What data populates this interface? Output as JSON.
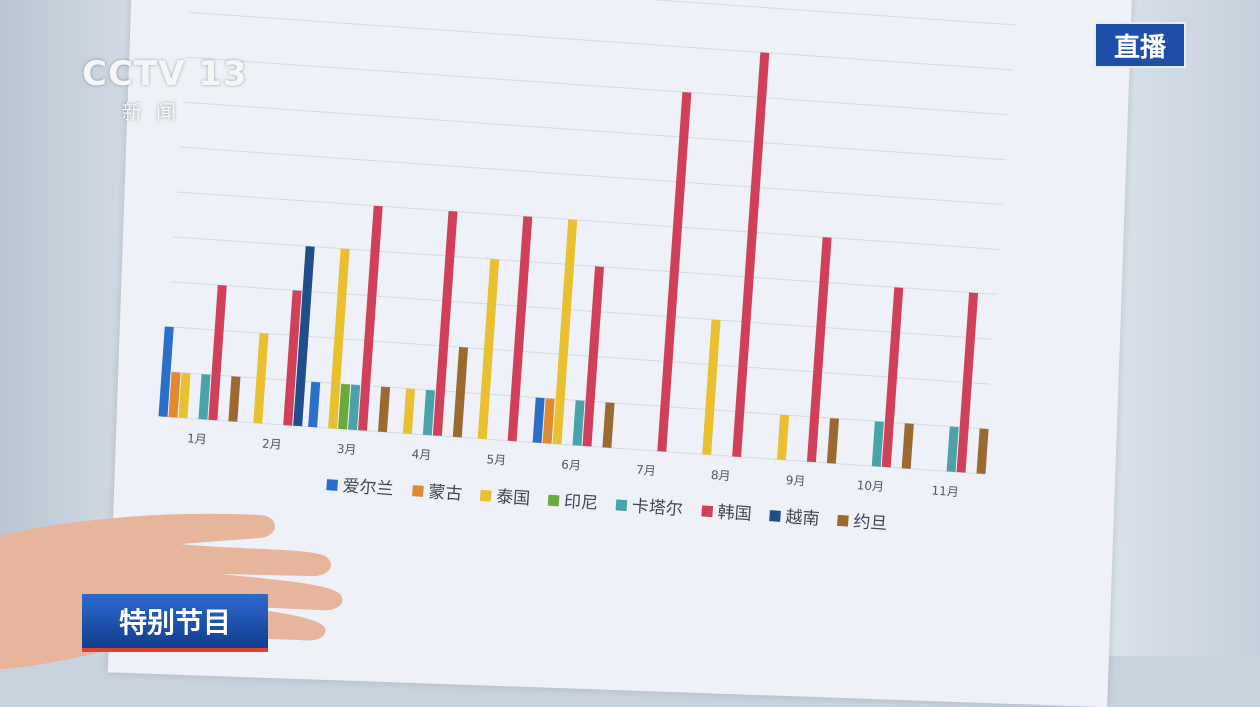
{
  "broadcast": {
    "channel_logo": "CCTV 13",
    "channel_sub": "新闻",
    "live_badge": "直播",
    "program_label": "特别节目"
  },
  "chart_data": {
    "type": "bar",
    "title": "",
    "xlabel": "",
    "ylabel": "",
    "categories": [
      "1月",
      "2月",
      "3月",
      "4月",
      "5月",
      "6月",
      "7月",
      "8月",
      "9月",
      "10月",
      "11月"
    ],
    "y_tick_labels_shown": false,
    "grid": true,
    "legend_position": "bottom",
    "series": [
      {
        "name": "爱尔兰",
        "color": "#2a6fc9",
        "values": [
          2,
          0,
          1,
          0,
          0,
          1,
          0,
          0,
          0,
          0,
          0
        ]
      },
      {
        "name": "蒙古",
        "color": "#e08a30",
        "values": [
          1,
          0,
          0,
          0,
          0,
          1,
          0,
          0,
          0,
          0,
          0
        ]
      },
      {
        "name": "泰国",
        "color": "#e8c030",
        "values": [
          1,
          2,
          4,
          1,
          4,
          5,
          0,
          3,
          1,
          0,
          0
        ]
      },
      {
        "name": "印尼",
        "color": "#6aaa3a",
        "values": [
          0,
          0,
          1,
          0,
          0,
          0,
          0,
          0,
          0,
          0,
          0
        ]
      },
      {
        "name": "卡塔尔",
        "color": "#4aa3a8",
        "values": [
          1,
          0,
          1,
          1,
          0,
          1,
          0,
          0,
          0,
          1,
          1
        ]
      },
      {
        "name": "韩国",
        "color": "#d0405a",
        "values": [
          3,
          3,
          5,
          5,
          5,
          4,
          8,
          9,
          5,
          4,
          4
        ]
      },
      {
        "name": "越南",
        "color": "#1f4e8a",
        "values": [
          0,
          4,
          0,
          0,
          0,
          0,
          0,
          0,
          0,
          0,
          0
        ]
      },
      {
        "name": "约旦",
        "color": "#9a6a30",
        "values": [
          1,
          0,
          1,
          2,
          0,
          1,
          0,
          0,
          1,
          1,
          1
        ]
      }
    ]
  }
}
